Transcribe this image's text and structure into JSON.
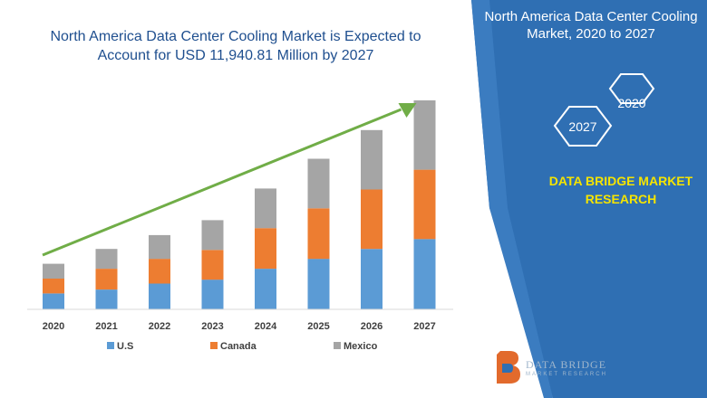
{
  "header": {
    "title_line1": "North America Data Center Cooling Market is Expected to",
    "title_line2": "Account for USD 11,940.81 Million by 2027"
  },
  "side_panel": {
    "title_line1": "North America Data Center Cooling",
    "title_line2": "Market, 2020 to 2027",
    "hex_start_year": "2020",
    "hex_end_year": "2027",
    "brand_line1": "DATA BRIDGE MARKET",
    "brand_line2": "RESEARCH",
    "logo_text": "DATA BRIDGE",
    "logo_subtext": "MARKET RESEARCH",
    "background_color": "#2f6fb3"
  },
  "chart_data": {
    "type": "bar",
    "stacked": true,
    "categories": [
      "2020",
      "2021",
      "2022",
      "2023",
      "2024",
      "2025",
      "2026",
      "2027"
    ],
    "series": [
      {
        "name": "U.S",
        "color": "#5b9bd5",
        "values": [
          1.6,
          2.0,
          2.6,
          3.0,
          4.1,
          5.1,
          6.1,
          7.1
        ]
      },
      {
        "name": "Canada",
        "color": "#ed7d31",
        "values": [
          1.5,
          2.1,
          2.5,
          3.0,
          4.1,
          5.1,
          6.0,
          7.0
        ]
      },
      {
        "name": "Mexico",
        "color": "#a5a5a5",
        "values": [
          1.5,
          2.0,
          2.4,
          3.0,
          4.0,
          5.0,
          6.0,
          7.0
        ]
      }
    ],
    "ylim": [
      0,
      21
    ],
    "legend_position": "bottom",
    "grid": false,
    "trend_arrow_color": "#70ad47"
  }
}
